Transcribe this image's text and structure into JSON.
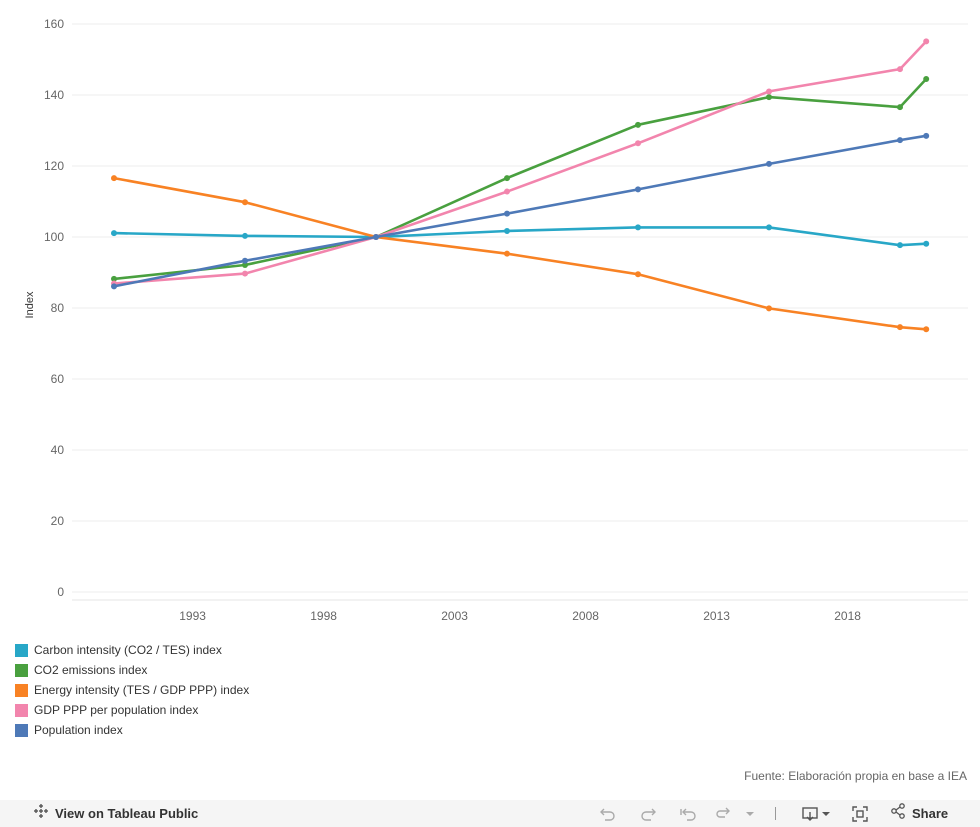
{
  "chart_data": {
    "type": "line",
    "ylabel": "Index",
    "xlabel": "",
    "ylim": [
      0,
      160
    ],
    "yticks": [
      0,
      20,
      40,
      60,
      80,
      100,
      120,
      140,
      160
    ],
    "xlim": [
      1990,
      2022
    ],
    "xticks": [
      1993,
      1998,
      2003,
      2008,
      2013,
      2018
    ],
    "x": [
      1990,
      1995,
      2000,
      2005,
      2010,
      2015,
      2020,
      2021
    ],
    "grid": "horizontal",
    "legend_position": "bottom-left",
    "series": [
      {
        "name": "Carbon intensity (CO2 / TES) index",
        "color": "#28a7c7",
        "values": [
          101.1,
          100.3,
          100.0,
          101.7,
          102.7,
          102.7,
          97.7,
          98.1
        ]
      },
      {
        "name": "CO2 emissions index",
        "color": "#49a03f",
        "values": [
          88.2,
          92.1,
          100.0,
          116.6,
          131.6,
          139.4,
          136.6,
          144.5
        ]
      },
      {
        "name": "Energy intensity (TES / GDP PPP) index",
        "color": "#f88224",
        "values": [
          116.6,
          109.8,
          100.0,
          95.3,
          89.5,
          79.9,
          74.6,
          74.0
        ]
      },
      {
        "name": "GDP PPP per population index",
        "color": "#f285ad",
        "values": [
          86.9,
          89.7,
          100.0,
          112.8,
          126.4,
          141.0,
          147.3,
          155.1
        ]
      },
      {
        "name": "Population index",
        "color": "#4e79b7",
        "values": [
          86.1,
          93.3,
          100.0,
          106.6,
          113.4,
          120.6,
          127.3,
          128.5
        ]
      }
    ]
  },
  "source_note": "Fuente: Elaboración propia en base a IEA",
  "toolbar": {
    "view_public_label": "View on Tableau Public",
    "share_label": "Share"
  }
}
